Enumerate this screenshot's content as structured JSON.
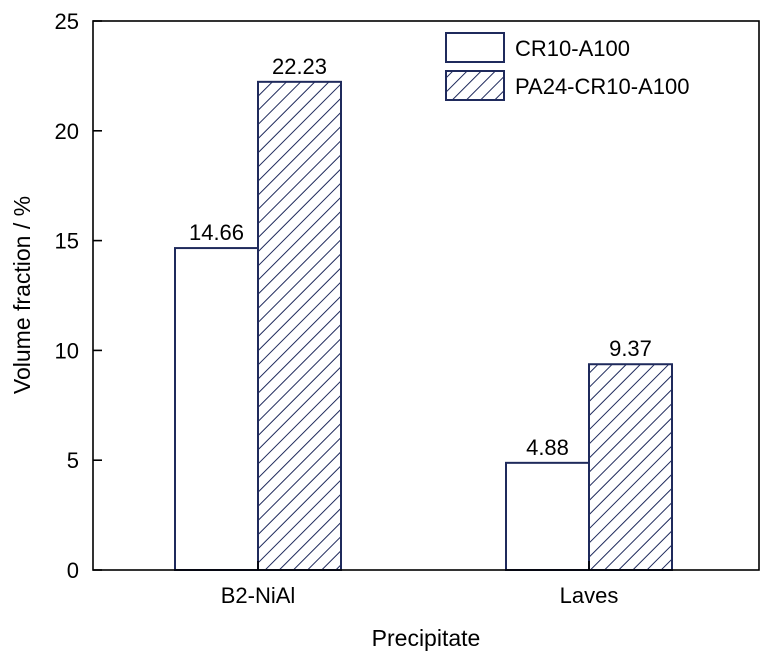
{
  "chart_data": {
    "type": "bar",
    "categories": [
      "B2-NiAl",
      "Laves"
    ],
    "series": [
      {
        "name": "CR10-A100",
        "values": [
          14.66,
          4.88
        ],
        "fill": "plain",
        "color": "#1f2a5c"
      },
      {
        "name": "PA24-CR10-A100",
        "values": [
          22.23,
          9.37
        ],
        "fill": "hatched",
        "color": "#1f2a5c"
      }
    ],
    "data_labels": [
      [
        "14.66",
        "4.88"
      ],
      [
        "22.23",
        "9.37"
      ]
    ],
    "title": "",
    "xlabel": "Precipitate",
    "ylabel": "Volume fraction / %",
    "ylim": [
      0,
      25
    ],
    "yticks": [
      0,
      5,
      10,
      15,
      20,
      25
    ],
    "grid": false,
    "legend": "top-right"
  }
}
